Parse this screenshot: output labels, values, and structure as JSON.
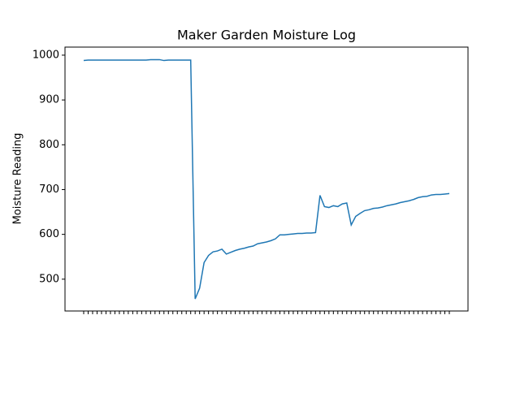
{
  "chart_data": {
    "type": "line",
    "title": "Maker Garden Moisture Log",
    "ylabel": "Moisture Reading",
    "color": "#1f77b4",
    "categories": [
      null,
      null,
      null,
      null,
      null,
      null,
      null,
      null,
      null,
      null,
      null,
      null,
      null,
      null,
      null,
      null,
      null,
      null,
      null,
      null,
      null,
      null,
      null,
      null,
      null,
      null,
      null,
      null,
      null,
      null,
      null,
      null,
      null,
      null,
      null,
      null,
      null,
      null,
      null,
      null,
      null,
      null,
      null,
      null,
      null,
      null,
      null,
      null,
      null,
      null,
      null,
      null,
      null,
      null,
      null,
      null,
      null,
      null,
      null,
      null,
      null,
      null,
      null,
      null,
      null,
      null,
      null,
      null,
      null,
      null,
      null,
      null,
      null,
      null,
      null,
      null,
      null,
      null,
      null,
      null,
      null,
      null,
      null
    ],
    "values": [
      988,
      989,
      989,
      989,
      989,
      989,
      989,
      989,
      989,
      989,
      989,
      989,
      989,
      989,
      989,
      990,
      990,
      990,
      988,
      989,
      989,
      989,
      989,
      989,
      989,
      456,
      480,
      537,
      553,
      561,
      563,
      567,
      556,
      560,
      564,
      567,
      569,
      572,
      574,
      579,
      581,
      583,
      586,
      590,
      599,
      599,
      600,
      601,
      602,
      602,
      603,
      603,
      604,
      687,
      662,
      660,
      664,
      662,
      668,
      670,
      621,
      640,
      647,
      653,
      655,
      658,
      659,
      661,
      664,
      666,
      668,
      671,
      673,
      675,
      678,
      682,
      684,
      685,
      688,
      689,
      689,
      690,
      691
    ],
    "ylim": [
      429,
      1018
    ],
    "yticks": [
      500,
      600,
      700,
      800,
      900,
      1000
    ]
  }
}
